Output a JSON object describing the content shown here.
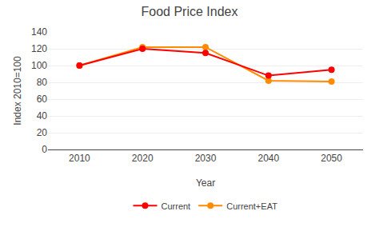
{
  "chart_data": {
    "type": "line",
    "title": "Food Price Index",
    "xlabel": "Year",
    "ylabel": "Index 2010=100",
    "x": [
      2010,
      2020,
      2030,
      2040,
      2050
    ],
    "series": [
      {
        "name": "Current",
        "color": "#FF0000",
        "marker": "circle",
        "values": [
          100,
          120,
          115,
          88,
          95
        ]
      },
      {
        "name": "Current+EAT",
        "color": "#FF8C00",
        "marker": "circle",
        "values": [
          100,
          122,
          122,
          82,
          81
        ]
      }
    ],
    "xlim": [
      2005,
      2055
    ],
    "xticks": [
      2010,
      2020,
      2030,
      2040,
      2050
    ],
    "ylim": [
      0,
      140
    ],
    "yticks": [
      0,
      20,
      40,
      60,
      80,
      100,
      120,
      140
    ],
    "grid": true,
    "legend": "bottom"
  }
}
